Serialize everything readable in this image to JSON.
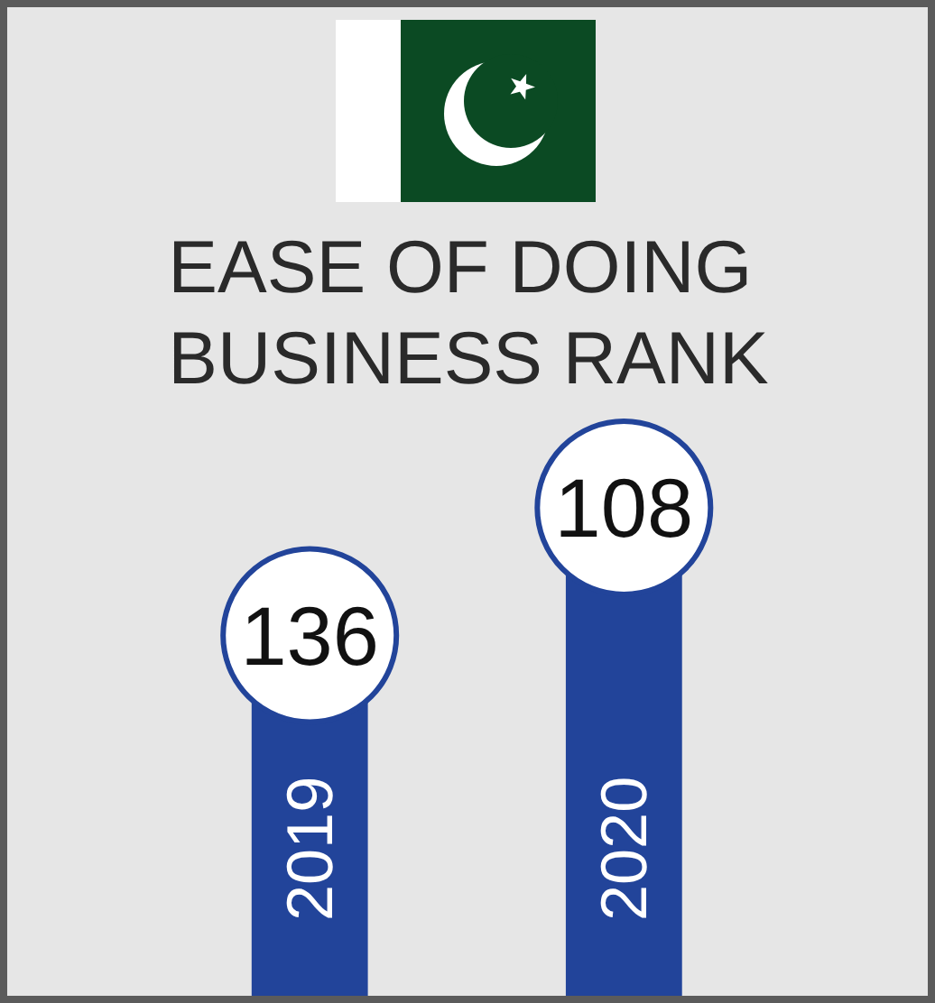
{
  "chart_data": {
    "type": "other",
    "title": "EASE OF DOING BUSINESS RANK",
    "categories": [
      "2019",
      "2020"
    ],
    "values": [
      136,
      108
    ],
    "color": "#22449a",
    "data_labels": true
  }
}
